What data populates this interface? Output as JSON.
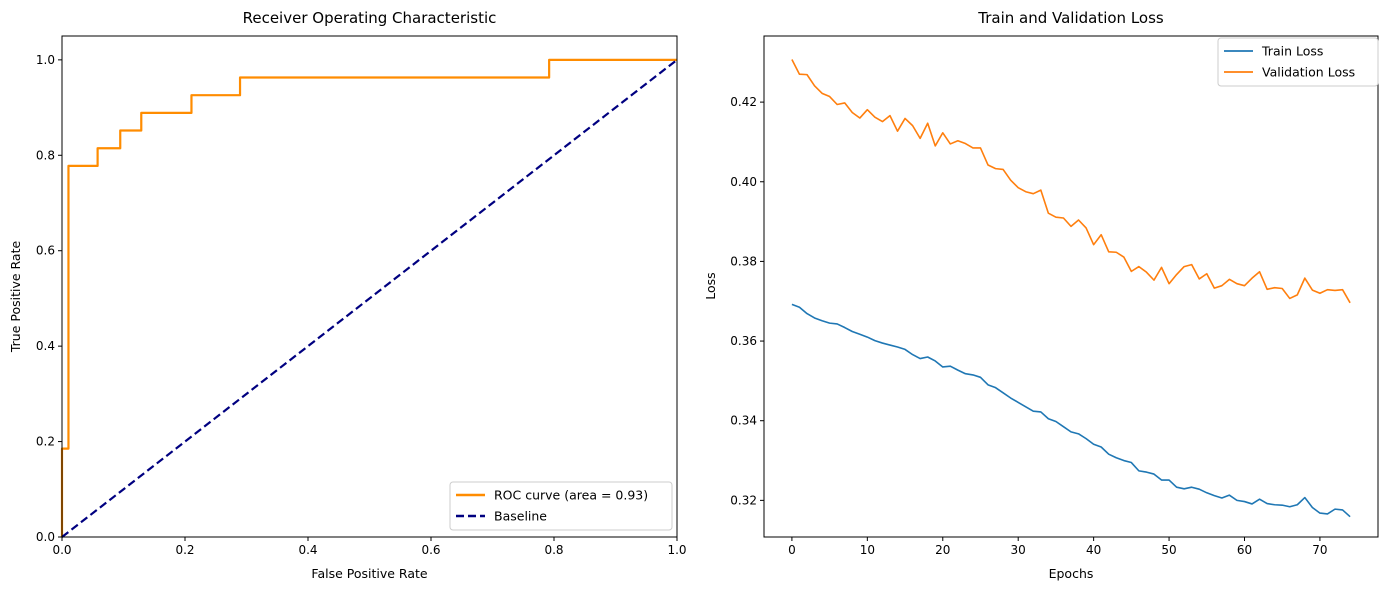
{
  "chart_data": [
    {
      "type": "line",
      "title": "Receiver Operating Characteristic",
      "xlabel": "False Positive Rate",
      "ylabel": "True Positive Rate",
      "xlim": [
        0,
        1
      ],
      "ylim": [
        0,
        1.05
      ],
      "xticks": [
        0.0,
        0.2,
        0.4,
        0.6,
        0.8,
        1.0
      ],
      "yticks": [
        0.0,
        0.2,
        0.4,
        0.6,
        0.8,
        1.0
      ],
      "xtick_labels": [
        "0.0",
        "0.2",
        "0.4",
        "0.6",
        "0.8",
        "1.0"
      ],
      "ytick_labels": [
        "0.0",
        "0.2",
        "0.4",
        "0.6",
        "0.8",
        "1.0"
      ],
      "grid": false,
      "legend_position": "lower-right",
      "series": [
        {
          "name": "ROC curve (area = 0.93)",
          "color": "#ff8c00",
          "style": "solid",
          "x": [
            0.0,
            0.0,
            0.0105,
            0.0105,
            0.0579,
            0.0579,
            0.0947,
            0.0947,
            0.1289,
            0.1289,
            0.2105,
            0.2105,
            0.2895,
            0.2895,
            0.7921,
            0.7921,
            1.0
          ],
          "y": [
            0.0,
            0.1852,
            0.1852,
            0.7778,
            0.7778,
            0.8148,
            0.8148,
            0.8519,
            0.8519,
            0.8889,
            0.8889,
            0.9259,
            0.9259,
            0.963,
            0.963,
            1.0,
            1.0
          ]
        },
        {
          "name": "Baseline",
          "color": "#000080",
          "style": "dashed",
          "x": [
            0.0,
            1.0
          ],
          "y": [
            0.0,
            1.0
          ]
        }
      ]
    },
    {
      "type": "line",
      "title": "Train and Validation Loss",
      "xlabel": "Epochs",
      "ylabel": "Loss",
      "xlim": [
        -3.7,
        77.7
      ],
      "ylim": [
        0.3108,
        0.4366
      ],
      "xticks": [
        0,
        10,
        20,
        30,
        40,
        50,
        60,
        70
      ],
      "yticks": [
        0.32,
        0.34,
        0.36,
        0.38,
        0.4,
        0.42
      ],
      "xtick_labels": [
        "0",
        "10",
        "20",
        "30",
        "40",
        "50",
        "60",
        "70"
      ],
      "ytick_labels": [
        "0.32",
        "0.34",
        "0.36",
        "0.38",
        "0.40",
        "0.42"
      ],
      "grid": false,
      "legend_position": "top-right",
      "series": [
        {
          "name": "Train Loss",
          "color": "#1f77b4",
          "values": [
            0.3692,
            0.3685,
            0.3669,
            0.3658,
            0.3651,
            0.3645,
            0.3643,
            0.3634,
            0.3624,
            0.3617,
            0.361,
            0.3601,
            0.3595,
            0.359,
            0.3585,
            0.3579,
            0.3566,
            0.3556,
            0.356,
            0.355,
            0.3535,
            0.3537,
            0.3527,
            0.3518,
            0.3515,
            0.3509,
            0.349,
            0.3483,
            0.347,
            0.3457,
            0.3446,
            0.3435,
            0.3424,
            0.3422,
            0.3405,
            0.3398,
            0.3385,
            0.3372,
            0.3367,
            0.3355,
            0.3341,
            0.3334,
            0.3316,
            0.3307,
            0.33,
            0.3295,
            0.3274,
            0.3271,
            0.3266,
            0.3251,
            0.3251,
            0.3233,
            0.3229,
            0.3233,
            0.3228,
            0.3219,
            0.3212,
            0.3206,
            0.3213,
            0.32,
            0.3197,
            0.3191,
            0.3203,
            0.3192,
            0.3189,
            0.3188,
            0.3184,
            0.3189,
            0.3207,
            0.3182,
            0.3168,
            0.3166,
            0.3178,
            0.3176,
            0.3159
          ]
        },
        {
          "name": "Validation Loss",
          "color": "#ff7f0e",
          "values": [
            0.4307,
            0.427,
            0.4269,
            0.4241,
            0.4222,
            0.4214,
            0.4194,
            0.4198,
            0.4174,
            0.416,
            0.4181,
            0.4162,
            0.4151,
            0.4166,
            0.4127,
            0.4159,
            0.4141,
            0.4109,
            0.4147,
            0.409,
            0.4123,
            0.4095,
            0.4103,
            0.4096,
            0.4085,
            0.4085,
            0.4042,
            0.4033,
            0.4031,
            0.4004,
            0.3985,
            0.3975,
            0.397,
            0.3979,
            0.3921,
            0.3911,
            0.3909,
            0.3888,
            0.3904,
            0.3884,
            0.3842,
            0.3867,
            0.3824,
            0.3823,
            0.3811,
            0.3775,
            0.3787,
            0.3773,
            0.3753,
            0.3785,
            0.3744,
            0.3767,
            0.3787,
            0.3792,
            0.3756,
            0.3769,
            0.3733,
            0.3739,
            0.3755,
            0.3744,
            0.3739,
            0.3758,
            0.3774,
            0.373,
            0.3734,
            0.3732,
            0.3707,
            0.3716,
            0.3758,
            0.3728,
            0.372,
            0.3729,
            0.3727,
            0.3729,
            0.3696
          ]
        }
      ]
    }
  ]
}
